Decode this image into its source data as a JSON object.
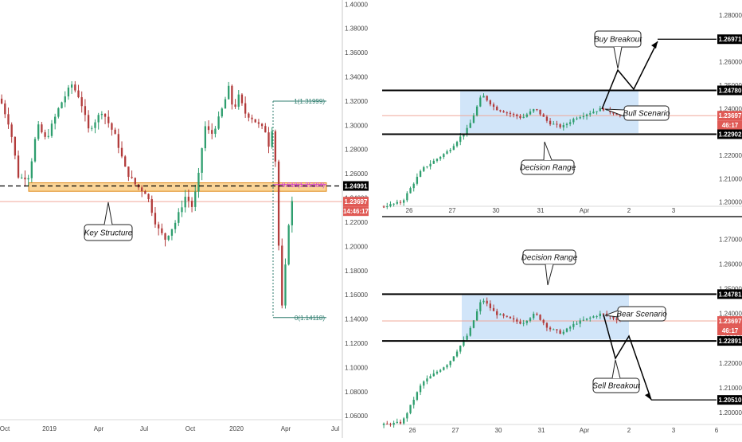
{
  "colors": {
    "up": "#2e9e6e",
    "down": "#b23b3b",
    "zone_fill": "#f5b041",
    "range_fill": "#b3d4f5",
    "fib": "#2f7d6f",
    "current_line": "#f0a89a",
    "black": "#000000",
    "current_price_bg": "#e05a55"
  },
  "chart_data": [
    {
      "type": "candlestick",
      "panel": "left",
      "x_tick_labels": [
        "Oct",
        "2019",
        "Apr",
        "Jul",
        "Oct",
        "2020",
        "Apr",
        "Jul"
      ],
      "y_tick_labels": [
        "1.40000",
        "1.38000",
        "1.36000",
        "1.34000",
        "1.32000",
        "1.30000",
        "1.28000",
        "1.26000",
        "1.24000",
        "1.22000",
        "1.20000",
        "1.18000",
        "1.16000",
        "1.14000",
        "1.12000",
        "1.10000",
        "1.08000",
        "1.06000"
      ],
      "ylim": [
        1.0575,
        1.4035
      ],
      "price_labels": [
        {
          "text": "1.24991",
          "value": 1.24991,
          "style": "black"
        },
        {
          "text": "1.23697",
          "value": 1.23697,
          "style": "red"
        },
        {
          "text": "14:46:17",
          "value": 1.23697,
          "style": "red-sub"
        }
      ],
      "fib_levels": [
        {
          "text": "1(1.31999)",
          "value": 1.31999
        },
        {
          "text": "0.618(1.25104)",
          "value": 1.25104
        },
        {
          "text": "0(1.14118)",
          "value": 1.14118
        }
      ],
      "zone": {
        "from": 1.2455,
        "to": 1.2525
      },
      "dashed_level": 1.24991,
      "annotations": [
        {
          "text": "Key Structure"
        }
      ],
      "path": [
        [
          0,
          1.322
        ],
        [
          0.03,
          1.298
        ],
        [
          0.055,
          1.256
        ],
        [
          0.085,
          1.258
        ],
        [
          0.11,
          1.3
        ],
        [
          0.135,
          1.288
        ],
        [
          0.175,
          1.316
        ],
        [
          0.21,
          1.334
        ],
        [
          0.235,
          1.322
        ],
        [
          0.26,
          1.296
        ],
        [
          0.3,
          1.312
        ],
        [
          0.34,
          1.29
        ],
        [
          0.37,
          1.262
        ],
        [
          0.4,
          1.25
        ],
        [
          0.43,
          1.244
        ],
        [
          0.46,
          1.216
        ],
        [
          0.485,
          1.206
        ],
        [
          0.515,
          1.22
        ],
        [
          0.545,
          1.242
        ],
        [
          0.565,
          1.232
        ],
        [
          0.585,
          1.262
        ],
        [
          0.6,
          1.3
        ],
        [
          0.62,
          1.292
        ],
        [
          0.64,
          1.304
        ],
        [
          0.66,
          1.32
        ],
        [
          0.67,
          1.332
        ],
        [
          0.685,
          1.312
        ],
        [
          0.7,
          1.324
        ],
        [
          0.72,
          1.31
        ],
        [
          0.74,
          1.306
        ],
        [
          0.76,
          1.3
        ],
        [
          0.78,
          1.295
        ],
        [
          0.79,
          1.282
        ],
        [
          0.8,
          1.3
        ],
        [
          0.81,
          1.264
        ],
        [
          0.818,
          1.2
        ],
        [
          0.826,
          1.144
        ],
        [
          0.834,
          1.17
        ],
        [
          0.842,
          1.2
        ],
        [
          0.852,
          1.236
        ],
        [
          0.862,
          1.237
        ]
      ],
      "candle_count": 88
    },
    {
      "type": "candlestick",
      "panel": "top-right",
      "x_tick_labels": [
        "26",
        "27",
        "30",
        "31",
        "Apr",
        "2",
        "3"
      ],
      "y_tick_labels": [
        "1.28000",
        "1.27000",
        "1.26000",
        "1.25000",
        "1.24000",
        "1.23000",
        "1.22000",
        "1.21000",
        "1.20000"
      ],
      "ylim": [
        1.1985,
        1.2865
      ],
      "price_labels": [
        {
          "text": "1.26971",
          "value": 1.26971,
          "style": "black"
        },
        {
          "text": "1.24780",
          "value": 1.2478,
          "style": "black"
        },
        {
          "text": "1.23697",
          "value": 1.23697,
          "style": "red"
        },
        {
          "text": "46:17",
          "value": 1.23697,
          "style": "red-sub"
        },
        {
          "text": "1.22902",
          "value": 1.22902,
          "style": "black"
        }
      ],
      "levels": [
        1.2478,
        1.22902
      ],
      "range_box": {
        "from": 1.2295,
        "to": 1.2475
      },
      "annotations": [
        {
          "text": "Buy Breakout"
        },
        {
          "text": "Bull Scenario"
        },
        {
          "text": "Decision Range"
        }
      ],
      "path": [
        [
          0,
          1.198
        ],
        [
          0.06,
          1.2
        ],
        [
          0.12,
          1.214
        ],
        [
          0.2,
          1.222
        ],
        [
          0.26,
          1.232
        ],
        [
          0.3,
          1.246
        ],
        [
          0.34,
          1.24
        ],
        [
          0.38,
          1.238
        ],
        [
          0.42,
          1.236
        ],
        [
          0.46,
          1.24
        ],
        [
          0.5,
          1.234
        ],
        [
          0.54,
          1.232
        ],
        [
          0.58,
          1.236
        ],
        [
          0.62,
          1.238
        ],
        [
          0.66,
          1.24
        ],
        [
          0.7,
          1.238
        ],
        [
          0.72,
          1.237
        ]
      ],
      "candle_count": 72
    },
    {
      "type": "candlestick",
      "panel": "bottom-right",
      "x_tick_labels": [
        "26",
        "27",
        "30",
        "31",
        "Apr",
        "2",
        "3",
        "6"
      ],
      "y_tick_labels": [
        "1.27000",
        "1.26000",
        "1.25000",
        "1.24000",
        "1.23000",
        "1.22000",
        "1.21000",
        "1.20000"
      ],
      "ylim": [
        1.1955,
        1.2775
      ],
      "price_labels": [
        {
          "text": "1.24781",
          "value": 1.24781,
          "style": "black"
        },
        {
          "text": "1.23697",
          "value": 1.23697,
          "style": "red"
        },
        {
          "text": "46:17",
          "value": 1.23697,
          "style": "red-sub"
        },
        {
          "text": "1.22891",
          "value": 1.22891,
          "style": "black"
        },
        {
          "text": "1.20510",
          "value": 1.2051,
          "style": "black"
        }
      ],
      "levels": [
        1.24781,
        1.22891
      ],
      "range_box": {
        "from": 1.2295,
        "to": 1.2475
      },
      "annotations": [
        {
          "text": "Decision Range"
        },
        {
          "text": "Bear Scenario"
        },
        {
          "text": "Sell Breakout"
        }
      ],
      "path": [
        [
          0,
          1.195
        ],
        [
          0.06,
          1.196
        ],
        [
          0.12,
          1.212
        ],
        [
          0.2,
          1.22
        ],
        [
          0.26,
          1.232
        ],
        [
          0.3,
          1.246
        ],
        [
          0.34,
          1.24
        ],
        [
          0.38,
          1.238
        ],
        [
          0.42,
          1.236
        ],
        [
          0.46,
          1.24
        ],
        [
          0.5,
          1.234
        ],
        [
          0.54,
          1.232
        ],
        [
          0.58,
          1.236
        ],
        [
          0.62,
          1.238
        ],
        [
          0.66,
          1.24
        ],
        [
          0.7,
          1.238
        ],
        [
          0.72,
          1.237
        ]
      ],
      "candle_count": 72
    }
  ]
}
